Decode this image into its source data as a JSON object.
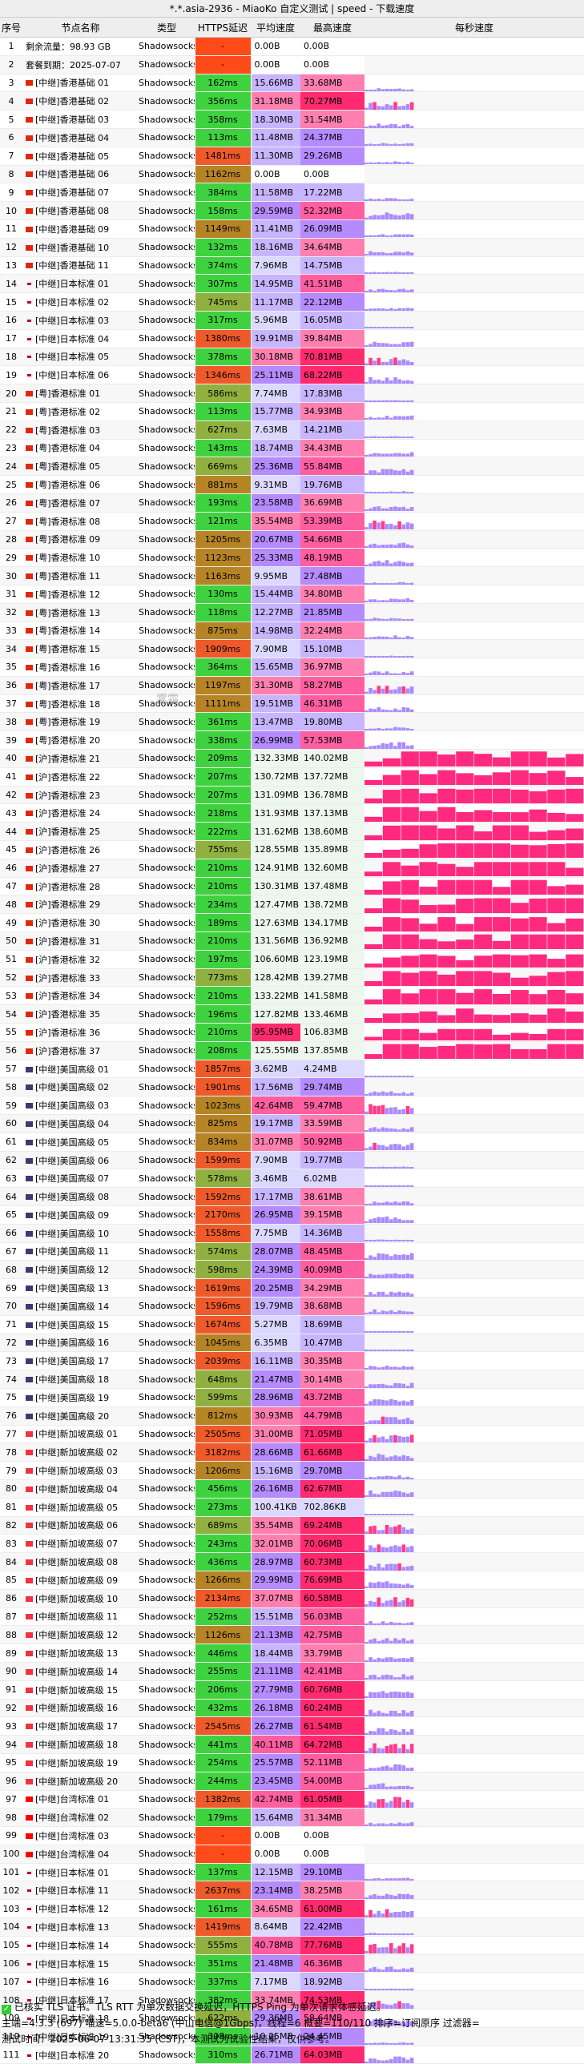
{
  "title": "*.*.asia-2936 - MiaoKo 自定义测试 | speed - 下载速度",
  "headers": [
    "序号",
    "节点名称",
    "类型",
    "HTTPS延迟",
    "平均速度",
    "最高速度",
    "每秒速度"
  ],
  "watermark": "雾霜",
  "rows": [
    [
      "1",
      "",
      "剩余流量：98.93 GB",
      "Shadowsocks",
      "-",
      "0.00B",
      "0.00B",
      0,
      0
    ],
    [
      "2",
      "",
      "套餐到期：2025-07-07",
      "Shadowsocks",
      "-",
      "0.00B",
      "0.00B",
      0,
      0
    ],
    [
      "3",
      "hk",
      "[中继]香港基础 01",
      "Shadowsocks",
      "162ms",
      "15.66MB",
      "33.68MB",
      15.66,
      33.68
    ],
    [
      "4",
      "hk",
      "[中继]香港基础 02",
      "Shadowsocks",
      "356ms",
      "31.18MB",
      "70.27MB",
      31.18,
      70.27
    ],
    [
      "5",
      "hk",
      "[中继]香港基础 03",
      "Shadowsocks",
      "358ms",
      "18.30MB",
      "31.54MB",
      18.3,
      31.54
    ],
    [
      "6",
      "hk",
      "[中继]香港基础 04",
      "Shadowsocks",
      "113ms",
      "11.48MB",
      "24.37MB",
      11.48,
      24.37
    ],
    [
      "7",
      "hk",
      "[中继]香港基础 05",
      "Shadowsocks",
      "1481ms",
      "11.30MB",
      "29.26MB",
      11.3,
      29.26
    ],
    [
      "8",
      "hk",
      "[中继]香港基础 06",
      "Shadowsocks",
      "1162ms",
      "0.00B",
      "0.00B",
      0,
      0
    ],
    [
      "9",
      "hk",
      "[中继]香港基础 07",
      "Shadowsocks",
      "384ms",
      "11.58MB",
      "17.22MB",
      11.58,
      17.22
    ],
    [
      "10",
      "hk",
      "[中继]香港基础 08",
      "Shadowsocks",
      "158ms",
      "29.59MB",
      "52.32MB",
      29.59,
      52.32
    ],
    [
      "11",
      "hk",
      "[中继]香港基础 09",
      "Shadowsocks",
      "1149ms",
      "11.41MB",
      "26.09MB",
      11.41,
      26.09
    ],
    [
      "12",
      "hk",
      "[中继]香港基础 10",
      "Shadowsocks",
      "132ms",
      "18.16MB",
      "34.64MB",
      18.16,
      34.64
    ],
    [
      "13",
      "hk",
      "[中继]香港基础 11",
      "Shadowsocks",
      "374ms",
      "7.96MB",
      "14.75MB",
      7.96,
      14.75
    ],
    [
      "14",
      "jp",
      "[中继]日本标准 01",
      "Shadowsocks",
      "307ms",
      "14.95MB",
      "41.51MB",
      14.95,
      41.51
    ],
    [
      "15",
      "jp",
      "[中继]日本标准 02",
      "Shadowsocks",
      "745ms",
      "11.17MB",
      "22.12MB",
      11.17,
      22.12
    ],
    [
      "16",
      "jp",
      "[中继]日本标准 03",
      "Shadowsocks",
      "317ms",
      "5.96MB",
      "16.05MB",
      5.96,
      16.05
    ],
    [
      "17",
      "jp",
      "[中继]日本标准 04",
      "Shadowsocks",
      "1380ms",
      "19.91MB",
      "39.84MB",
      19.91,
      39.84
    ],
    [
      "18",
      "jp",
      "[中继]日本标准 05",
      "Shadowsocks",
      "378ms",
      "30.18MB",
      "70.81MB",
      30.18,
      70.81
    ],
    [
      "19",
      "jp",
      "[中继]日本标准 06",
      "Shadowsocks",
      "1346ms",
      "25.11MB",
      "68.22MB",
      25.11,
      68.22
    ],
    [
      "20",
      "hk",
      "[粤]香港标准 01",
      "Shadowsocks",
      "586ms",
      "7.74MB",
      "17.83MB",
      7.74,
      17.83
    ],
    [
      "21",
      "hk",
      "[粤]香港标准 02",
      "Shadowsocks",
      "113ms",
      "15.77MB",
      "34.93MB",
      15.77,
      34.93
    ],
    [
      "22",
      "hk",
      "[粤]香港标准 03",
      "Shadowsocks",
      "627ms",
      "7.63MB",
      "14.21MB",
      7.63,
      14.21
    ],
    [
      "23",
      "hk",
      "[粤]香港标准 04",
      "Shadowsocks",
      "143ms",
      "18.74MB",
      "34.43MB",
      18.74,
      34.43
    ],
    [
      "24",
      "hk",
      "[粤]香港标准 05",
      "Shadowsocks",
      "669ms",
      "25.36MB",
      "55.84MB",
      25.36,
      55.84
    ],
    [
      "25",
      "hk",
      "[粤]香港标准 06",
      "Shadowsocks",
      "881ms",
      "9.31MB",
      "19.76MB",
      9.31,
      19.76
    ],
    [
      "26",
      "hk",
      "[粤]香港标准 07",
      "Shadowsocks",
      "193ms",
      "23.58MB",
      "36.69MB",
      23.58,
      36.69
    ],
    [
      "27",
      "hk",
      "[粤]香港标准 08",
      "Shadowsocks",
      "121ms",
      "35.54MB",
      "53.39MB",
      35.54,
      53.39
    ],
    [
      "28",
      "hk",
      "[粤]香港标准 09",
      "Shadowsocks",
      "1205ms",
      "20.67MB",
      "54.66MB",
      20.67,
      54.66
    ],
    [
      "29",
      "hk",
      "[粤]香港标准 10",
      "Shadowsocks",
      "1123ms",
      "25.33MB",
      "48.19MB",
      25.33,
      48.19
    ],
    [
      "30",
      "hk",
      "[粤]香港标准 11",
      "Shadowsocks",
      "1163ms",
      "9.95MB",
      "27.48MB",
      9.95,
      27.48
    ],
    [
      "31",
      "hk",
      "[粤]香港标准 12",
      "Shadowsocks",
      "130ms",
      "15.44MB",
      "34.80MB",
      15.44,
      34.8
    ],
    [
      "32",
      "hk",
      "[粤]香港标准 13",
      "Shadowsocks",
      "118ms",
      "12.27MB",
      "21.85MB",
      12.27,
      21.85
    ],
    [
      "33",
      "hk",
      "[粤]香港标准 14",
      "Shadowsocks",
      "875ms",
      "14.98MB",
      "32.24MB",
      14.98,
      32.24
    ],
    [
      "34",
      "hk",
      "[粤]香港标准 15",
      "Shadowsocks",
      "1909ms",
      "7.90MB",
      "15.10MB",
      7.9,
      15.1
    ],
    [
      "35",
      "hk",
      "[粤]香港标准 16",
      "Shadowsocks",
      "364ms",
      "15.65MB",
      "36.97MB",
      15.65,
      36.97
    ],
    [
      "36",
      "hk",
      "[粤]香港标准 17",
      "Shadowsocks",
      "1197ms",
      "31.30MB",
      "58.27MB",
      31.3,
      58.27
    ],
    [
      "37",
      "hk",
      "[粤]香港标准 18",
      "Shadowsocks",
      "1111ms",
      "19.51MB",
      "46.31MB",
      19.51,
      46.31
    ],
    [
      "38",
      "hk",
      "[粤]香港标准 19",
      "Shadowsocks",
      "361ms",
      "13.47MB",
      "19.80MB",
      13.47,
      19.8
    ],
    [
      "39",
      "hk",
      "[粤]香港标准 20",
      "Shadowsocks",
      "338ms",
      "26.99MB",
      "57.53MB",
      26.99,
      57.53
    ],
    [
      "40",
      "hk",
      "[沪]香港标准 21",
      "Shadowsocks",
      "209ms",
      "132.33MB",
      "140.02MB",
      132.33,
      140.02
    ],
    [
      "41",
      "hk",
      "[沪]香港标准 22",
      "Shadowsocks",
      "207ms",
      "130.72MB",
      "137.72MB",
      130.72,
      137.72
    ],
    [
      "42",
      "hk",
      "[沪]香港标准 23",
      "Shadowsocks",
      "207ms",
      "131.09MB",
      "136.78MB",
      131.09,
      136.78
    ],
    [
      "43",
      "hk",
      "[沪]香港标准 24",
      "Shadowsocks",
      "218ms",
      "131.93MB",
      "137.13MB",
      131.93,
      137.13
    ],
    [
      "44",
      "hk",
      "[沪]香港标准 25",
      "Shadowsocks",
      "222ms",
      "131.62MB",
      "138.60MB",
      131.62,
      138.6
    ],
    [
      "45",
      "hk",
      "[沪]香港标准 26",
      "Shadowsocks",
      "755ms",
      "128.55MB",
      "135.89MB",
      128.55,
      135.89
    ],
    [
      "46",
      "hk",
      "[沪]香港标准 27",
      "Shadowsocks",
      "210ms",
      "124.91MB",
      "132.60MB",
      124.91,
      132.6
    ],
    [
      "47",
      "hk",
      "[沪]香港标准 28",
      "Shadowsocks",
      "210ms",
      "130.31MB",
      "137.48MB",
      130.31,
      137.48
    ],
    [
      "48",
      "hk",
      "[沪]香港标准 29",
      "Shadowsocks",
      "234ms",
      "127.47MB",
      "138.72MB",
      127.47,
      138.72
    ],
    [
      "49",
      "hk",
      "[沪]香港标准 30",
      "Shadowsocks",
      "189ms",
      "127.63MB",
      "134.17MB",
      127.63,
      134.17
    ],
    [
      "50",
      "hk",
      "[沪]香港标准 31",
      "Shadowsocks",
      "210ms",
      "131.56MB",
      "136.92MB",
      131.56,
      136.92
    ],
    [
      "51",
      "hk",
      "[沪]香港标准 32",
      "Shadowsocks",
      "197ms",
      "106.60MB",
      "123.19MB",
      106.6,
      123.19
    ],
    [
      "52",
      "hk",
      "[沪]香港标准 33",
      "Shadowsocks",
      "773ms",
      "128.42MB",
      "139.27MB",
      128.42,
      139.27
    ],
    [
      "53",
      "hk",
      "[沪]香港标准 34",
      "Shadowsocks",
      "210ms",
      "133.22MB",
      "141.58MB",
      133.22,
      141.58
    ],
    [
      "54",
      "hk",
      "[沪]香港标准 35",
      "Shadowsocks",
      "196ms",
      "127.82MB",
      "133.46MB",
      127.82,
      133.46
    ],
    [
      "55",
      "hk",
      "[沪]香港标准 36",
      "Shadowsocks",
      "210ms",
      "95.95MB",
      "106.83MB",
      95.95,
      106.83
    ],
    [
      "56",
      "hk",
      "[沪]香港标准 37",
      "Shadowsocks",
      "208ms",
      "125.55MB",
      "137.85MB",
      125.55,
      137.85
    ],
    [
      "57",
      "us",
      "[中继]美国高级 01",
      "Shadowsocks",
      "1857ms",
      "3.62MB",
      "4.24MB",
      3.62,
      4.24
    ],
    [
      "58",
      "us",
      "[中继]美国高级 02",
      "Shadowsocks",
      "1901ms",
      "17.56MB",
      "29.74MB",
      17.56,
      29.74
    ],
    [
      "59",
      "us",
      "[中继]美国高级 03",
      "Shadowsocks",
      "1023ms",
      "42.64MB",
      "59.47MB",
      42.64,
      59.47
    ],
    [
      "60",
      "us",
      "[中继]美国高级 04",
      "Shadowsocks",
      "825ms",
      "19.17MB",
      "33.59MB",
      19.17,
      33.59
    ],
    [
      "61",
      "us",
      "[中继]美国高级 05",
      "Shadowsocks",
      "834ms",
      "31.07MB",
      "50.92MB",
      31.07,
      50.92
    ],
    [
      "62",
      "us",
      "[中继]美国高级 06",
      "Shadowsocks",
      "1599ms",
      "7.90MB",
      "19.77MB",
      7.9,
      19.77
    ],
    [
      "63",
      "us",
      "[中继]美国高级 07",
      "Shadowsocks",
      "578ms",
      "3.46MB",
      "6.02MB",
      3.46,
      6.02
    ],
    [
      "64",
      "us",
      "[中继]美国高级 08",
      "Shadowsocks",
      "1592ms",
      "17.17MB",
      "38.61MB",
      17.17,
      38.61
    ],
    [
      "65",
      "us",
      "[中继]美国高级 09",
      "Shadowsocks",
      "2170ms",
      "26.95MB",
      "39.15MB",
      26.95,
      39.15
    ],
    [
      "66",
      "us",
      "[中继]美国高级 10",
      "Shadowsocks",
      "1558ms",
      "7.75MB",
      "14.36MB",
      7.75,
      14.36
    ],
    [
      "67",
      "us",
      "[中继]美国高级 11",
      "Shadowsocks",
      "574ms",
      "28.07MB",
      "48.45MB",
      28.07,
      48.45
    ],
    [
      "68",
      "us",
      "[中继]美国高级 12",
      "Shadowsocks",
      "598ms",
      "24.39MB",
      "40.09MB",
      24.39,
      40.09
    ],
    [
      "69",
      "us",
      "[中继]美国高级 13",
      "Shadowsocks",
      "1619ms",
      "20.25MB",
      "34.29MB",
      20.25,
      34.29
    ],
    [
      "70",
      "us",
      "[中继]美国高级 14",
      "Shadowsocks",
      "1596ms",
      "19.79MB",
      "38.68MB",
      19.79,
      38.68
    ],
    [
      "71",
      "us",
      "[中继]美国高级 15",
      "Shadowsocks",
      "1674ms",
      "5.27MB",
      "18.69MB",
      5.27,
      18.69
    ],
    [
      "72",
      "us",
      "[中继]美国高级 16",
      "Shadowsocks",
      "1045ms",
      "6.35MB",
      "10.47MB",
      6.35,
      10.47
    ],
    [
      "73",
      "us",
      "[中继]美国高级 17",
      "Shadowsocks",
      "2039ms",
      "16.11MB",
      "30.35MB",
      16.11,
      30.35
    ],
    [
      "74",
      "us",
      "[中继]美国高级 18",
      "Shadowsocks",
      "648ms",
      "21.47MB",
      "30.14MB",
      21.47,
      30.14
    ],
    [
      "75",
      "us",
      "[中继]美国高级 19",
      "Shadowsocks",
      "599ms",
      "28.96MB",
      "43.72MB",
      28.96,
      43.72
    ],
    [
      "76",
      "us",
      "[中继]美国高级 20",
      "Shadowsocks",
      "812ms",
      "30.93MB",
      "44.79MB",
      30.93,
      44.79
    ],
    [
      "77",
      "sg",
      "[中继]新加坡高级 01",
      "Shadowsocks",
      "2505ms",
      "31.00MB",
      "71.05MB",
      31.0,
      71.05
    ],
    [
      "78",
      "sg",
      "[中继]新加坡高级 02",
      "Shadowsocks",
      "3182ms",
      "28.66MB",
      "61.66MB",
      28.66,
      61.66
    ],
    [
      "79",
      "sg",
      "[中继]新加坡高级 03",
      "Shadowsocks",
      "1206ms",
      "15.16MB",
      "29.70MB",
      15.16,
      29.7
    ],
    [
      "80",
      "sg",
      "[中继]新加坡高级 04",
      "Shadowsocks",
      "456ms",
      "26.16MB",
      "62.67MB",
      26.16,
      62.67
    ],
    [
      "81",
      "sg",
      "[中继]新加坡高级 05",
      "Shadowsocks",
      "273ms",
      "100.41KB",
      "702.86KB",
      0.1,
      0.69
    ],
    [
      "82",
      "sg",
      "[中继]新加坡高级 06",
      "Shadowsocks",
      "689ms",
      "35.54MB",
      "69.24MB",
      35.54,
      69.24
    ],
    [
      "83",
      "sg",
      "[中继]新加坡高级 07",
      "Shadowsocks",
      "243ms",
      "32.01MB",
      "70.06MB",
      32.01,
      70.06
    ],
    [
      "84",
      "sg",
      "[中继]新加坡高级 08",
      "Shadowsocks",
      "436ms",
      "28.97MB",
      "60.73MB",
      28.97,
      60.73
    ],
    [
      "85",
      "sg",
      "[中继]新加坡高级 09",
      "Shadowsocks",
      "1266ms",
      "29.99MB",
      "76.69MB",
      29.99,
      76.69
    ],
    [
      "86",
      "sg",
      "[中继]新加坡高级 10",
      "Shadowsocks",
      "2134ms",
      "37.07MB",
      "60.58MB",
      37.07,
      60.58
    ],
    [
      "87",
      "sg",
      "[中继]新加坡高级 11",
      "Shadowsocks",
      "252ms",
      "15.51MB",
      "56.03MB",
      15.51,
      56.03
    ],
    [
      "88",
      "sg",
      "[中继]新加坡高级 12",
      "Shadowsocks",
      "1126ms",
      "21.13MB",
      "42.75MB",
      21.13,
      42.75
    ],
    [
      "89",
      "sg",
      "[中继]新加坡高级 13",
      "Shadowsocks",
      "446ms",
      "18.44MB",
      "33.79MB",
      18.44,
      33.79
    ],
    [
      "90",
      "sg",
      "[中继]新加坡高级 14",
      "Shadowsocks",
      "255ms",
      "21.11MB",
      "42.41MB",
      21.11,
      42.41
    ],
    [
      "91",
      "sg",
      "[中继]新加坡高级 15",
      "Shadowsocks",
      "206ms",
      "27.79MB",
      "60.76MB",
      27.79,
      60.76
    ],
    [
      "92",
      "sg",
      "[中继]新加坡高级 16",
      "Shadowsocks",
      "432ms",
      "26.18MB",
      "60.24MB",
      26.18,
      60.24
    ],
    [
      "93",
      "sg",
      "[中继]新加坡高级 17",
      "Shadowsocks",
      "2545ms",
      "26.27MB",
      "61.54MB",
      26.27,
      61.54
    ],
    [
      "94",
      "sg",
      "[中继]新加坡高级 18",
      "Shadowsocks",
      "441ms",
      "40.11MB",
      "64.72MB",
      40.11,
      64.72
    ],
    [
      "95",
      "sg",
      "[中继]新加坡高级 19",
      "Shadowsocks",
      "254ms",
      "25.57MB",
      "52.11MB",
      25.57,
      52.11
    ],
    [
      "96",
      "sg",
      "[中继]新加坡高级 20",
      "Shadowsocks",
      "244ms",
      "23.45MB",
      "54.00MB",
      23.45,
      54.0
    ],
    [
      "97",
      "tw",
      "[中继]台湾标准 01",
      "Shadowsocks",
      "1382ms",
      "42.74MB",
      "61.05MB",
      42.74,
      61.05
    ],
    [
      "98",
      "tw",
      "[中继]台湾标准 02",
      "Shadowsocks",
      "179ms",
      "15.64MB",
      "31.34MB",
      15.64,
      31.34
    ],
    [
      "99",
      "tw",
      "[中继]台湾标准 03",
      "Shadowsocks",
      "-",
      "0.00B",
      "0.00B",
      0,
      0
    ],
    [
      "100",
      "tw",
      "[中继]台湾标准 04",
      "Shadowsocks",
      "-",
      "0.00B",
      "0.00B",
      0,
      0
    ],
    [
      "101",
      "jp",
      "[中继]日本标准 01",
      "Shadowsocks",
      "137ms",
      "12.15MB",
      "29.10MB",
      12.15,
      29.1
    ],
    [
      "102",
      "jp",
      "[中继]日本标准 11",
      "Shadowsocks",
      "2637ms",
      "23.14MB",
      "38.25MB",
      23.14,
      38.25
    ],
    [
      "103",
      "jp",
      "[中继]日本标准 12",
      "Shadowsocks",
      "161ms",
      "34.65MB",
      "61.00MB",
      34.65,
      61.0
    ],
    [
      "104",
      "jp",
      "[中继]日本标准 13",
      "Shadowsocks",
      "1419ms",
      "8.64MB",
      "22.42MB",
      8.64,
      22.42
    ],
    [
      "105",
      "jp",
      "[中继]日本标准 14",
      "Shadowsocks",
      "555ms",
      "40.78MB",
      "77.76MB",
      40.78,
      77.76
    ],
    [
      "106",
      "jp",
      "[中继]日本标准 15",
      "Shadowsocks",
      "351ms",
      "21.48MB",
      "46.36MB",
      21.48,
      46.36
    ],
    [
      "107",
      "jp",
      "[中继]日本标准 16",
      "Shadowsocks",
      "337ms",
      "7.17MB",
      "18.92MB",
      7.17,
      18.92
    ],
    [
      "108",
      "jp",
      "[中继]日本标准 17",
      "Shadowsocks",
      "382ms",
      "33.74MB",
      "74.53MB",
      33.74,
      74.53
    ],
    [
      "109",
      "jp",
      "[中继]日本标准 18",
      "Shadowsocks",
      "622ms",
      "29.36MB",
      "58.64MB",
      29.36,
      58.64
    ],
    [
      "110",
      "jp",
      "[中继]日本标准 19",
      "Shadowsocks",
      "308ms",
      "10.25MB",
      "24.45MB",
      10.25,
      24.45
    ],
    [
      "111",
      "jp",
      "[中继]日本标准 20",
      "Shadowsocks",
      "310ms",
      "26.71MB",
      "64.03MB",
      26.71,
      64.03
    ]
  ],
  "footer": {
    "line1": "已核实 TLS 证书。TLS RTT 为单次数据交换延迟，HTTPS Ping 为单次请求体感延迟。",
    "line2": "主端=4.3.3 (697) 喵速=5.0.0-beta6 (中山电信@1Gbps)，线程=6 概要=110/110 排序=订阅原序 过滤器=",
    "line3": "测试时间：2025-06-07 13:31:35 (CST)，本测试为试验性结果，仅供参考。"
  },
  "flag_colors": {
    "hk": "#de2910",
    "jp": "#f4f4f4",
    "us": "#3c3b6e",
    "sg": "#ef3340",
    "tw": "#fe0000"
  }
}
